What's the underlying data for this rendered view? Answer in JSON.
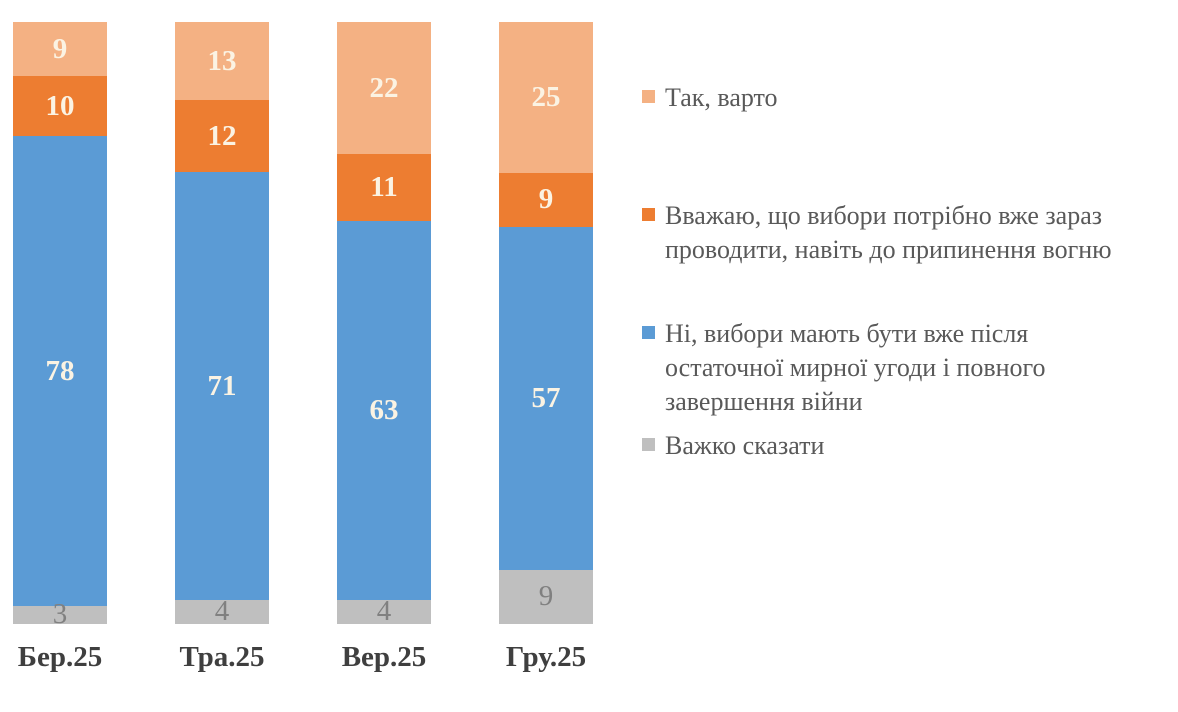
{
  "chart_data": {
    "type": "bar",
    "stacked": true,
    "orientation": "vertical",
    "title": "",
    "xlabel": "",
    "ylabel": "",
    "ylim": [
      0,
      100
    ],
    "grid": false,
    "legend_position": "right",
    "categories": [
      "Бер.25",
      "Тра.25",
      "Вер.25",
      "Гру.25"
    ],
    "series": [
      {
        "name": "Так, варто",
        "color": "#F4B183",
        "value_label_color": "#FBF3E3",
        "value_label_weight": "bold",
        "values": [
          9,
          13,
          22,
          25
        ]
      },
      {
        "name": "Вважаю, що вибори потрібно вже зараз\nпроводити, навіть до припинення вогню",
        "color": "#ED7D31",
        "value_label_color": "#FBF3E3",
        "value_label_weight": "bold",
        "values": [
          10,
          12,
          11,
          9
        ]
      },
      {
        "name": "Ні, вибори мають бути вже після\nостаточної мирної угоди і повного\nзавершення війни",
        "color": "#5B9BD5",
        "value_label_color": "#FBF3E3",
        "value_label_weight": "bold",
        "values": [
          78,
          71,
          63,
          57
        ]
      },
      {
        "name": "Важко сказати",
        "color": "#BFBFBF",
        "value_label_color": "#808080",
        "value_label_weight": "normal",
        "values": [
          3,
          4,
          4,
          9
        ]
      }
    ]
  },
  "axis": {
    "category_label_color": "#3f3f3f"
  },
  "legend": {
    "text_color": "#595959"
  }
}
